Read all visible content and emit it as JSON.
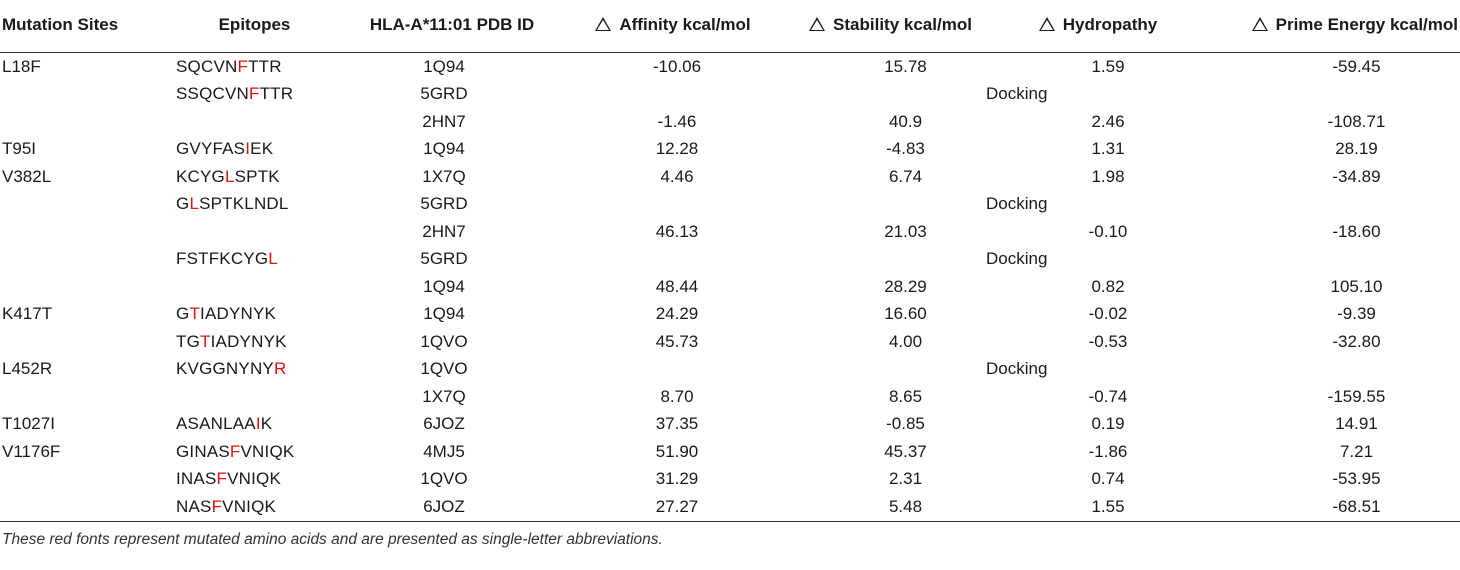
{
  "header": {
    "site": "Mutation Sites",
    "epitope": "Epitopes",
    "pdb": "HLA-A*11:01 PDB ID",
    "affinity": "Affinity kcal/mol",
    "stability": "Stability kcal/mol",
    "hydropathy": "Hydropathy",
    "prime": "Prime Energy kcal/mol",
    "delta_icon": "white-up-triangle"
  },
  "rows": [
    {
      "site": "L18F",
      "epi_pre": "SQCVN",
      "epi_mut": "F",
      "epi_post": "TTR",
      "pdb": "1Q94",
      "affinity": "-10.06",
      "stability": "15.78",
      "hydropathy": "1.59",
      "prime": "-59.45"
    },
    {
      "site": "",
      "epi_pre": "SSQCVN",
      "epi_mut": "F",
      "epi_post": "TTR",
      "pdb": "5GRD",
      "docking": "Docking"
    },
    {
      "site": "",
      "epi_pre": "",
      "epi_mut": "",
      "epi_post": "",
      "pdb": "2HN7",
      "affinity": "-1.46",
      "stability": "40.9",
      "hydropathy": "2.46",
      "prime": "-108.71"
    },
    {
      "site": "T95I",
      "epi_pre": "GVYFAS",
      "epi_mut": "I",
      "epi_post": "EK",
      "pdb": "1Q94",
      "affinity": "12.28",
      "stability": "-4.83",
      "hydropathy": "1.31",
      "prime": "28.19"
    },
    {
      "site": "V382L",
      "epi_pre": "KCYG",
      "epi_mut": "L",
      "epi_post": "SPTK",
      "pdb": "1X7Q",
      "affinity": "4.46",
      "stability": "6.74",
      "hydropathy": "1.98",
      "prime": "-34.89"
    },
    {
      "site": "",
      "epi_pre": "G",
      "epi_mut": "L",
      "epi_post": "SPTKLNDL",
      "pdb": "5GRD",
      "docking": "Docking"
    },
    {
      "site": "",
      "epi_pre": "",
      "epi_mut": "",
      "epi_post": "",
      "pdb": "2HN7",
      "affinity": "46.13",
      "stability": "21.03",
      "hydropathy": "-0.10",
      "prime": "-18.60"
    },
    {
      "site": "",
      "epi_pre": "FSTFKCYG",
      "epi_mut": "L",
      "epi_post": "",
      "pdb": "5GRD",
      "docking": "Docking"
    },
    {
      "site": "",
      "epi_pre": "",
      "epi_mut": "",
      "epi_post": "",
      "pdb": "1Q94",
      "affinity": "48.44",
      "stability": "28.29",
      "hydropathy": "0.82",
      "prime": "105.10"
    },
    {
      "site": "K417T",
      "epi_pre": "G",
      "epi_mut": "T",
      "epi_post": "IADYNYK",
      "pdb": "1Q94",
      "affinity": "24.29",
      "stability": "16.60",
      "hydropathy": "-0.02",
      "prime": "-9.39"
    },
    {
      "site": "",
      "epi_pre": "TG",
      "epi_mut": "T",
      "epi_post": "IADYNYK",
      "pdb": "1QVO",
      "affinity": "45.73",
      "stability": "4.00",
      "hydropathy": "-0.53",
      "prime": "-32.80"
    },
    {
      "site": "L452R",
      "epi_pre": "KVGGNYNY",
      "epi_mut": "R",
      "epi_post": "",
      "pdb": "1QVO",
      "docking": "Docking"
    },
    {
      "site": "",
      "epi_pre": "",
      "epi_mut": "",
      "epi_post": "",
      "pdb": "1X7Q",
      "affinity": "8.70",
      "stability": "8.65",
      "hydropathy": "-0.74",
      "prime": "-159.55"
    },
    {
      "site": "T1027I",
      "epi_pre": "ASANLAA",
      "epi_mut": "I",
      "epi_post": "K",
      "pdb": "6JOZ",
      "affinity": "37.35",
      "stability": "-0.85",
      "hydropathy": "0.19",
      "prime": "14.91"
    },
    {
      "site": "V1176F",
      "epi_pre": "GINAS",
      "epi_mut": "F",
      "epi_post": "VNIQK",
      "pdb": "4MJ5",
      "affinity": "51.90",
      "stability": "45.37",
      "hydropathy": "-1.86",
      "prime": "7.21"
    },
    {
      "site": "",
      "epi_pre": "INAS",
      "epi_mut": "F",
      "epi_post": "VNIQK",
      "pdb": "1QVO",
      "affinity": "31.29",
      "stability": "2.31",
      "hydropathy": "0.74",
      "prime": "-53.95"
    },
    {
      "site": "",
      "epi_pre": "NAS",
      "epi_mut": "F",
      "epi_post": "VNIQK",
      "pdb": "6JOZ",
      "affinity": "27.27",
      "stability": "5.48",
      "hydropathy": "1.55",
      "prime": "-68.51"
    }
  ],
  "footnote": "These red fonts represent mutated amino acids and are presented as single-letter abbreviations.",
  "colors": {
    "mutation": "#e3120b",
    "text": "#1a1a1a",
    "rule": "#333333"
  }
}
